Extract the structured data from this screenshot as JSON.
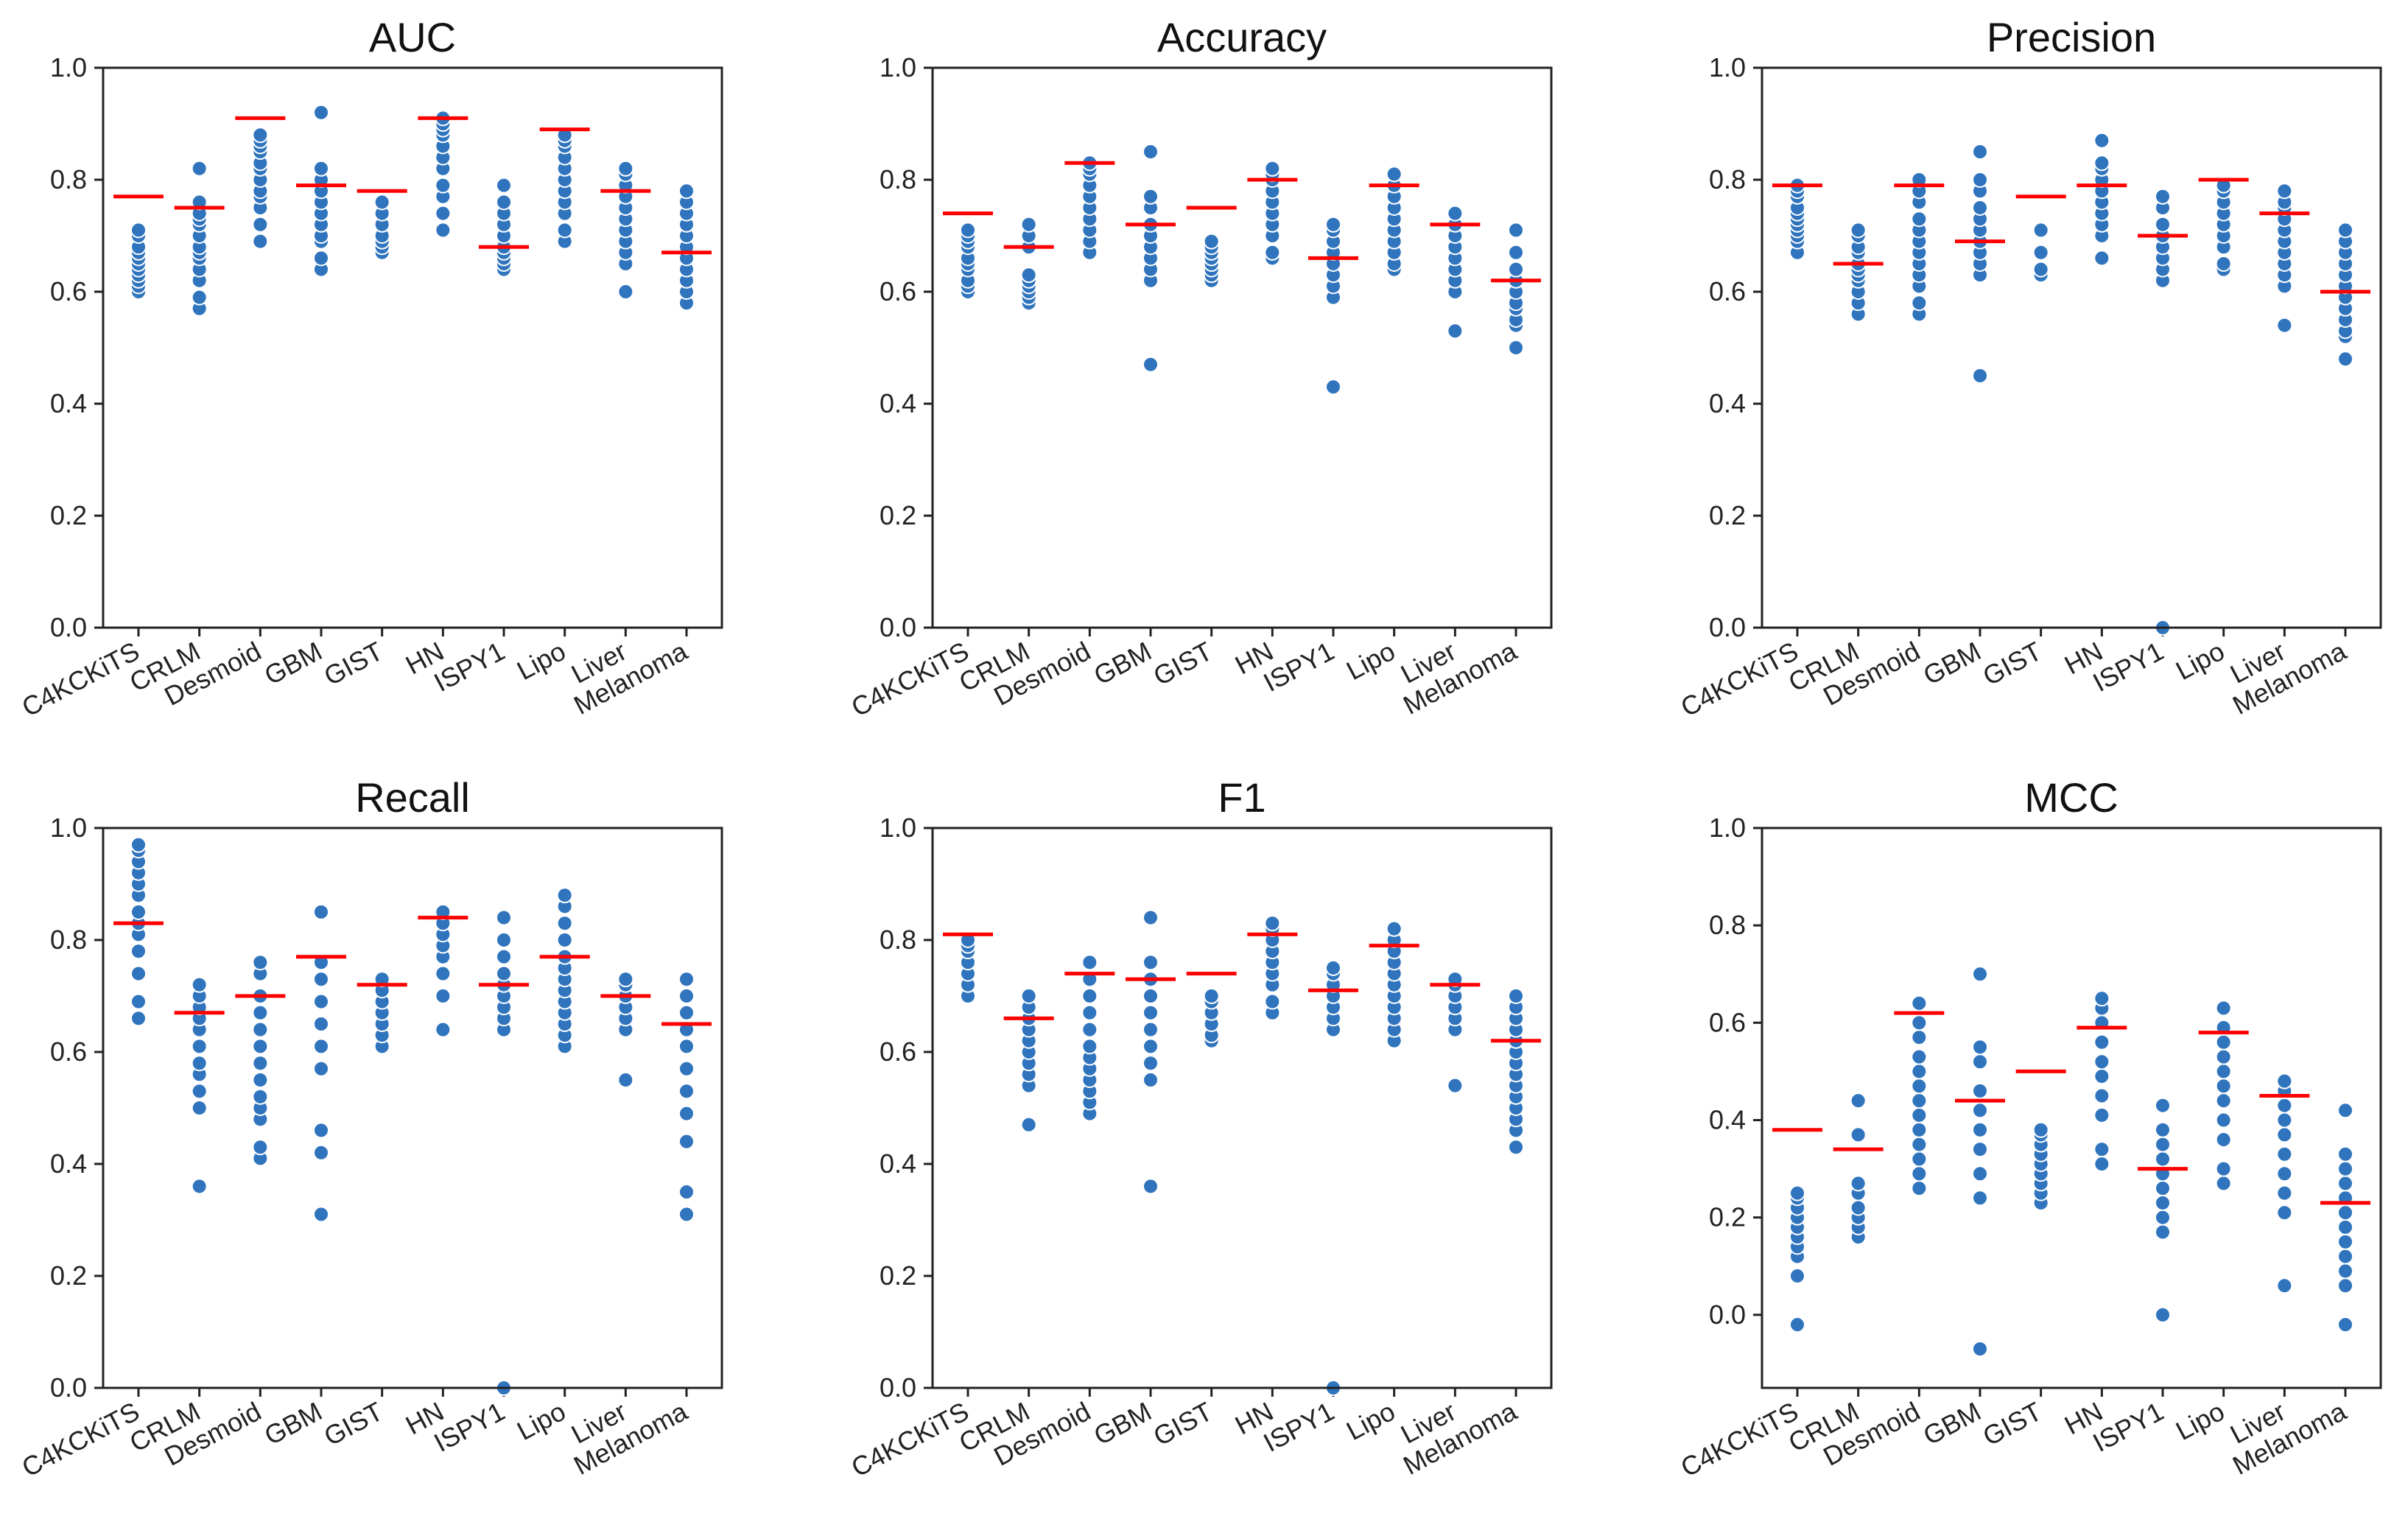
{
  "chart_data": [
    {
      "type": "scatter",
      "title": "AUC",
      "categories": [
        "C4KCKiTS",
        "CRLM",
        "Desmoid",
        "GBM",
        "GIST",
        "HN",
        "ISPY1",
        "Lipo",
        "Liver",
        "Melanoma"
      ],
      "ylim": [
        0,
        1
      ],
      "yticks": [
        "0.0",
        "0.2",
        "0.4",
        "0.6",
        "0.8",
        "1.0"
      ],
      "means": [
        0.77,
        0.75,
        0.91,
        0.79,
        0.78,
        0.91,
        0.68,
        0.89,
        0.78,
        0.67
      ],
      "points": [
        [
          0.6,
          0.61,
          0.62,
          0.63,
          0.64,
          0.65,
          0.66,
          0.67,
          0.68,
          0.7,
          0.71
        ],
        [
          0.57,
          0.59,
          0.62,
          0.64,
          0.66,
          0.67,
          0.68,
          0.7,
          0.72,
          0.73,
          0.74,
          0.76,
          0.82
        ],
        [
          0.69,
          0.72,
          0.75,
          0.77,
          0.78,
          0.8,
          0.82,
          0.83,
          0.85,
          0.86,
          0.87,
          0.88
        ],
        [
          0.64,
          0.66,
          0.69,
          0.7,
          0.72,
          0.74,
          0.76,
          0.78,
          0.8,
          0.82,
          0.92
        ],
        [
          0.67,
          0.68,
          0.69,
          0.7,
          0.72,
          0.74,
          0.76
        ],
        [
          0.71,
          0.74,
          0.77,
          0.79,
          0.82,
          0.84,
          0.86,
          0.88,
          0.89,
          0.9,
          0.91
        ],
        [
          0.64,
          0.65,
          0.66,
          0.67,
          0.68,
          0.7,
          0.72,
          0.74,
          0.76,
          0.79
        ],
        [
          0.69,
          0.71,
          0.74,
          0.76,
          0.78,
          0.8,
          0.82,
          0.84,
          0.86,
          0.87,
          0.88
        ],
        [
          0.6,
          0.65,
          0.67,
          0.69,
          0.71,
          0.73,
          0.75,
          0.77,
          0.79,
          0.81,
          0.82
        ],
        [
          0.58,
          0.6,
          0.62,
          0.64,
          0.66,
          0.68,
          0.7,
          0.72,
          0.74,
          0.76,
          0.78
        ]
      ]
    },
    {
      "type": "scatter",
      "title": "Accuracy",
      "categories": [
        "C4KCKiTS",
        "CRLM",
        "Desmoid",
        "GBM",
        "GIST",
        "HN",
        "ISPY1",
        "Lipo",
        "Liver",
        "Melanoma"
      ],
      "ylim": [
        0,
        1
      ],
      "yticks": [
        "0.0",
        "0.2",
        "0.4",
        "0.6",
        "0.8",
        "1.0"
      ],
      "means": [
        0.74,
        0.68,
        0.83,
        0.72,
        0.75,
        0.8,
        0.66,
        0.79,
        0.72,
        0.62
      ],
      "points": [
        [
          0.6,
          0.61,
          0.62,
          0.64,
          0.65,
          0.66,
          0.68,
          0.69,
          0.7,
          0.71
        ],
        [
          0.58,
          0.59,
          0.6,
          0.61,
          0.62,
          0.63,
          0.68,
          0.7,
          0.72
        ],
        [
          0.67,
          0.69,
          0.71,
          0.73,
          0.75,
          0.77,
          0.79,
          0.81,
          0.82,
          0.83
        ],
        [
          0.47,
          0.62,
          0.64,
          0.66,
          0.68,
          0.7,
          0.72,
          0.75,
          0.77,
          0.85
        ],
        [
          0.62,
          0.63,
          0.64,
          0.65,
          0.66,
          0.67,
          0.68,
          0.69
        ],
        [
          0.66,
          0.67,
          0.7,
          0.72,
          0.74,
          0.76,
          0.78,
          0.8,
          0.81,
          0.82
        ],
        [
          0.43,
          0.59,
          0.61,
          0.63,
          0.65,
          0.67,
          0.69,
          0.71,
          0.72
        ],
        [
          0.64,
          0.65,
          0.67,
          0.69,
          0.71,
          0.73,
          0.75,
          0.77,
          0.79,
          0.81
        ],
        [
          0.53,
          0.6,
          0.62,
          0.64,
          0.66,
          0.68,
          0.7,
          0.72,
          0.74
        ],
        [
          0.5,
          0.54,
          0.55,
          0.57,
          0.58,
          0.6,
          0.62,
          0.64,
          0.67,
          0.71
        ]
      ]
    },
    {
      "type": "scatter",
      "title": "Precision",
      "categories": [
        "C4KCKiTS",
        "CRLM",
        "Desmoid",
        "GBM",
        "GIST",
        "HN",
        "ISPY1",
        "Lipo",
        "Liver",
        "Melanoma"
      ],
      "ylim": [
        0,
        1
      ],
      "yticks": [
        "0.0",
        "0.2",
        "0.4",
        "0.6",
        "0.8",
        "1.0"
      ],
      "means": [
        0.79,
        0.65,
        0.79,
        0.69,
        0.77,
        0.79,
        0.7,
        0.8,
        0.74,
        0.6
      ],
      "points": [
        [
          0.67,
          0.69,
          0.7,
          0.71,
          0.72,
          0.73,
          0.74,
          0.75,
          0.77,
          0.78,
          0.79
        ],
        [
          0.56,
          0.58,
          0.6,
          0.62,
          0.63,
          0.64,
          0.65,
          0.67,
          0.68,
          0.7,
          0.71
        ],
        [
          0.56,
          0.58,
          0.61,
          0.63,
          0.65,
          0.67,
          0.69,
          0.71,
          0.73,
          0.76,
          0.78,
          0.8
        ],
        [
          0.45,
          0.63,
          0.65,
          0.67,
          0.69,
          0.71,
          0.73,
          0.75,
          0.78,
          0.8,
          0.85
        ],
        [
          0.63,
          0.64,
          0.67,
          0.71
        ],
        [
          0.66,
          0.7,
          0.72,
          0.74,
          0.76,
          0.78,
          0.8,
          0.82,
          0.83,
          0.87
        ],
        [
          0.0,
          0.62,
          0.64,
          0.66,
          0.68,
          0.7,
          0.72,
          0.75,
          0.77
        ],
        [
          0.64,
          0.65,
          0.68,
          0.7,
          0.72,
          0.74,
          0.76,
          0.78,
          0.79
        ],
        [
          0.54,
          0.61,
          0.63,
          0.65,
          0.67,
          0.69,
          0.71,
          0.73,
          0.75,
          0.76,
          0.78
        ],
        [
          0.48,
          0.52,
          0.53,
          0.55,
          0.57,
          0.59,
          0.61,
          0.63,
          0.65,
          0.67,
          0.69,
          0.71
        ]
      ]
    },
    {
      "type": "scatter",
      "title": "Recall",
      "categories": [
        "C4KCKiTS",
        "CRLM",
        "Desmoid",
        "GBM",
        "GIST",
        "HN",
        "ISPY1",
        "Lipo",
        "Liver",
        "Melanoma"
      ],
      "ylim": [
        0,
        1
      ],
      "yticks": [
        "0.0",
        "0.2",
        "0.4",
        "0.6",
        "0.8",
        "1.0"
      ],
      "means": [
        0.83,
        0.67,
        0.7,
        0.77,
        0.72,
        0.84,
        0.72,
        0.77,
        0.7,
        0.65
      ],
      "points": [
        [
          0.66,
          0.69,
          0.74,
          0.78,
          0.81,
          0.83,
          0.85,
          0.88,
          0.9,
          0.92,
          0.94,
          0.96,
          0.97
        ],
        [
          0.36,
          0.5,
          0.53,
          0.56,
          0.58,
          0.61,
          0.64,
          0.66,
          0.68,
          0.7,
          0.72
        ],
        [
          0.41,
          0.43,
          0.48,
          0.5,
          0.52,
          0.55,
          0.58,
          0.61,
          0.64,
          0.67,
          0.7,
          0.74,
          0.76
        ],
        [
          0.31,
          0.42,
          0.46,
          0.57,
          0.61,
          0.65,
          0.69,
          0.73,
          0.76,
          0.85
        ],
        [
          0.61,
          0.63,
          0.65,
          0.67,
          0.69,
          0.71,
          0.73
        ],
        [
          0.64,
          0.7,
          0.74,
          0.77,
          0.79,
          0.81,
          0.83,
          0.85
        ],
        [
          0.0,
          0.64,
          0.66,
          0.68,
          0.7,
          0.72,
          0.74,
          0.77,
          0.8,
          0.84
        ],
        [
          0.61,
          0.63,
          0.65,
          0.67,
          0.69,
          0.71,
          0.73,
          0.75,
          0.77,
          0.8,
          0.83,
          0.86,
          0.88
        ],
        [
          0.55,
          0.64,
          0.66,
          0.68,
          0.7,
          0.72,
          0.73
        ],
        [
          0.31,
          0.35,
          0.44,
          0.49,
          0.53,
          0.57,
          0.61,
          0.64,
          0.67,
          0.7,
          0.73
        ]
      ]
    },
    {
      "type": "scatter",
      "title": "F1",
      "categories": [
        "C4KCKiTS",
        "CRLM",
        "Desmoid",
        "GBM",
        "GIST",
        "HN",
        "ISPY1",
        "Lipo",
        "Liver",
        "Melanoma"
      ],
      "ylim": [
        0,
        1
      ],
      "yticks": [
        "0.0",
        "0.2",
        "0.4",
        "0.6",
        "0.8",
        "1.0"
      ],
      "means": [
        0.81,
        0.66,
        0.74,
        0.73,
        0.74,
        0.81,
        0.71,
        0.79,
        0.72,
        0.62
      ],
      "points": [
        [
          0.7,
          0.72,
          0.74,
          0.76,
          0.78,
          0.79,
          0.8
        ],
        [
          0.47,
          0.54,
          0.56,
          0.58,
          0.6,
          0.62,
          0.64,
          0.66,
          0.68,
          0.7
        ],
        [
          0.49,
          0.51,
          0.53,
          0.55,
          0.57,
          0.59,
          0.61,
          0.64,
          0.67,
          0.7,
          0.73,
          0.76
        ],
        [
          0.36,
          0.55,
          0.58,
          0.61,
          0.64,
          0.67,
          0.7,
          0.73,
          0.76,
          0.84
        ],
        [
          0.62,
          0.63,
          0.65,
          0.67,
          0.69,
          0.7
        ],
        [
          0.67,
          0.69,
          0.72,
          0.74,
          0.76,
          0.78,
          0.8,
          0.82,
          0.83
        ],
        [
          0.0,
          0.64,
          0.66,
          0.68,
          0.7,
          0.72,
          0.74,
          0.75
        ],
        [
          0.62,
          0.64,
          0.66,
          0.68,
          0.7,
          0.72,
          0.74,
          0.76,
          0.78,
          0.8,
          0.82
        ],
        [
          0.54,
          0.64,
          0.66,
          0.68,
          0.7,
          0.72,
          0.73
        ],
        [
          0.43,
          0.46,
          0.48,
          0.5,
          0.52,
          0.54,
          0.56,
          0.58,
          0.6,
          0.62,
          0.64,
          0.66,
          0.68,
          0.7
        ]
      ]
    },
    {
      "type": "scatter",
      "title": "MCC",
      "categories": [
        "C4KCKiTS",
        "CRLM",
        "Desmoid",
        "GBM",
        "GIST",
        "HN",
        "ISPY1",
        "Lipo",
        "Liver",
        "Melanoma"
      ],
      "ylim": [
        -0.15,
        1
      ],
      "yticks": [
        "0.0",
        "0.2",
        "0.4",
        "0.6",
        "0.8",
        "1.0"
      ],
      "means": [
        0.38,
        0.34,
        0.62,
        0.44,
        0.5,
        0.59,
        0.3,
        0.58,
        0.45,
        0.23
      ],
      "points": [
        [
          -0.02,
          0.08,
          0.12,
          0.14,
          0.16,
          0.18,
          0.2,
          0.22,
          0.24,
          0.25
        ],
        [
          0.16,
          0.18,
          0.2,
          0.22,
          0.25,
          0.27,
          0.37,
          0.44
        ],
        [
          0.26,
          0.29,
          0.32,
          0.35,
          0.38,
          0.41,
          0.44,
          0.47,
          0.5,
          0.53,
          0.57,
          0.6,
          0.64
        ],
        [
          -0.07,
          0.24,
          0.29,
          0.34,
          0.38,
          0.42,
          0.46,
          0.52,
          0.55,
          0.7
        ],
        [
          0.23,
          0.25,
          0.27,
          0.29,
          0.31,
          0.33,
          0.35,
          0.37,
          0.38
        ],
        [
          0.31,
          0.34,
          0.41,
          0.45,
          0.49,
          0.52,
          0.56,
          0.6,
          0.63,
          0.65
        ],
        [
          0.0,
          0.17,
          0.2,
          0.23,
          0.26,
          0.29,
          0.32,
          0.35,
          0.38,
          0.43
        ],
        [
          0.27,
          0.3,
          0.36,
          0.4,
          0.44,
          0.47,
          0.5,
          0.53,
          0.56,
          0.59,
          0.63
        ],
        [
          0.06,
          0.21,
          0.25,
          0.29,
          0.33,
          0.37,
          0.4,
          0.43,
          0.46,
          0.48
        ],
        [
          -0.02,
          0.06,
          0.09,
          0.12,
          0.15,
          0.18,
          0.21,
          0.24,
          0.27,
          0.3,
          0.33,
          0.42
        ]
      ]
    }
  ]
}
